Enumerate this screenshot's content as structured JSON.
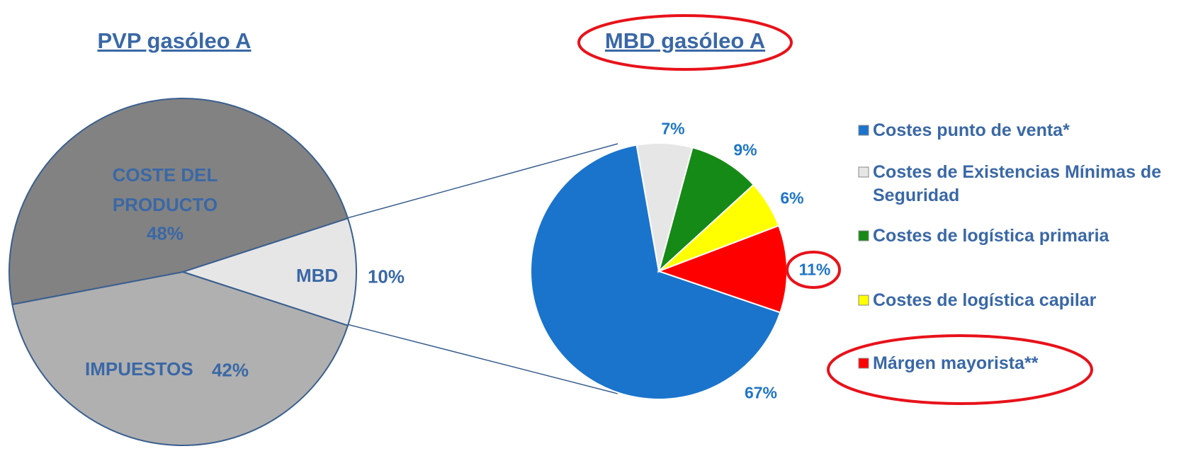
{
  "chart_data": [
    {
      "type": "pie",
      "title": "PVP gasóleo A",
      "categories": [
        "MBD",
        "IMPUESTOS",
        "COSTE DEL PRODUCTO"
      ],
      "values": [
        10,
        42,
        48
      ],
      "value_labels": [
        "10%",
        "42%",
        "48%"
      ],
      "colors": [
        "#e6e6e6",
        "#b0b0b0",
        "#828282"
      ]
    },
    {
      "type": "pie",
      "title": "MBD gasóleo A",
      "categories": [
        "Costes punto de venta*",
        "Costes de Existencias Mínimas de Seguridad",
        "Costes de logística primaria",
        "Costes de logística capilar",
        "Márgen mayorista**"
      ],
      "values": [
        67,
        7,
        9,
        6,
        11
      ],
      "value_labels": [
        "67%",
        "7%",
        "9%",
        "6%",
        "11%"
      ],
      "colors": [
        "#1a74cc",
        "#e6e6e6",
        "#168a16",
        "#ffff00",
        "#ff0000"
      ],
      "legend": "right"
    }
  ]
}
